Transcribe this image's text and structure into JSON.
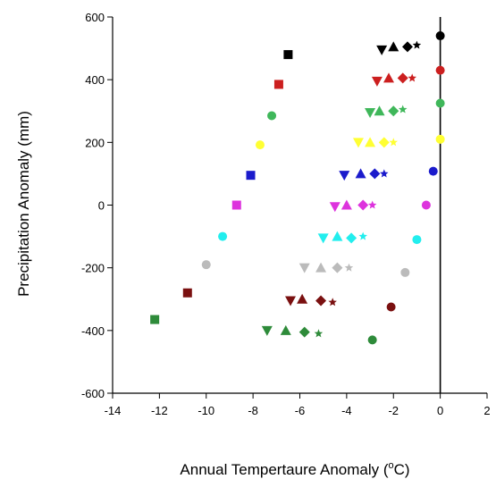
{
  "chart_data": {
    "type": "scatter",
    "xlabel": "Annual Tempertaure Anomaly (",
    "xlabel_unit": "oC)",
    "xlabel_sup": "o",
    "xlabel_end": "C)",
    "ylabel": "Precipitation Anomaly (mm)",
    "xlim": [
      -14,
      2
    ],
    "ylim": [
      -600,
      600
    ],
    "x_ticks": [
      "-14",
      "-12",
      "-10",
      "-8",
      "-6",
      "-4",
      "-2",
      "0",
      "2"
    ],
    "y_ticks": [
      "-600",
      "-400",
      "-200",
      "0",
      "200",
      "400",
      "600"
    ],
    "vertical_reference_line_x": 0,
    "grid": false,
    "points": [
      {
        "x": -6.5,
        "y": 480,
        "color": "#000000",
        "marker": "square"
      },
      {
        "x": -6.9,
        "y": 385,
        "color": "#cc1f1f",
        "marker": "square"
      },
      {
        "x": -7.2,
        "y": 285,
        "color": "#3fb75a",
        "marker": "circle"
      },
      {
        "x": -7.7,
        "y": 192,
        "color": "#ffff33",
        "marker": "circle"
      },
      {
        "x": -8.1,
        "y": 95,
        "color": "#1b1bcc",
        "marker": "square"
      },
      {
        "x": -8.7,
        "y": 0,
        "color": "#dd33dd",
        "marker": "square"
      },
      {
        "x": -9.3,
        "y": -100,
        "color": "#22eeee",
        "marker": "circle"
      },
      {
        "x": -10,
        "y": -190,
        "color": "#bbbbbb",
        "marker": "circle"
      },
      {
        "x": -10.8,
        "y": -280,
        "color": "#7a1010",
        "marker": "square"
      },
      {
        "x": -12.2,
        "y": -365,
        "color": "#2e8b3a",
        "marker": "square"
      },
      {
        "x": -2.5,
        "y": 495,
        "color": "#000000",
        "marker": "tri-down"
      },
      {
        "x": -2.0,
        "y": 505,
        "color": "#000000",
        "marker": "tri-up"
      },
      {
        "x": -1.4,
        "y": 505,
        "color": "#000000",
        "marker": "diamond"
      },
      {
        "x": -1.0,
        "y": 510,
        "color": "#000000",
        "marker": "star"
      },
      {
        "x": 0,
        "y": 540,
        "color": "#000000",
        "marker": "circle"
      },
      {
        "x": -2.7,
        "y": 395,
        "color": "#cc1f1f",
        "marker": "tri-down"
      },
      {
        "x": -2.2,
        "y": 405,
        "color": "#cc1f1f",
        "marker": "tri-up"
      },
      {
        "x": -1.6,
        "y": 405,
        "color": "#cc1f1f",
        "marker": "diamond"
      },
      {
        "x": -1.2,
        "y": 405,
        "color": "#cc1f1f",
        "marker": "star"
      },
      {
        "x": 0,
        "y": 430,
        "color": "#cc1f1f",
        "marker": "circle"
      },
      {
        "x": -3.0,
        "y": 295,
        "color": "#3fb75a",
        "marker": "tri-down"
      },
      {
        "x": -2.6,
        "y": 300,
        "color": "#3fb75a",
        "marker": "tri-up"
      },
      {
        "x": -2.0,
        "y": 300,
        "color": "#3fb75a",
        "marker": "diamond"
      },
      {
        "x": -1.6,
        "y": 305,
        "color": "#3fb75a",
        "marker": "star"
      },
      {
        "x": 0,
        "y": 325,
        "color": "#3fb75a",
        "marker": "circle"
      },
      {
        "x": -3.5,
        "y": 200,
        "color": "#ffff33",
        "marker": "tri-down"
      },
      {
        "x": -3.0,
        "y": 200,
        "color": "#ffff33",
        "marker": "tri-up"
      },
      {
        "x": -2.4,
        "y": 200,
        "color": "#ffff33",
        "marker": "diamond"
      },
      {
        "x": -2.0,
        "y": 200,
        "color": "#ffff33",
        "marker": "star"
      },
      {
        "x": 0,
        "y": 210,
        "color": "#ffff33",
        "marker": "circle"
      },
      {
        "x": -4.1,
        "y": 95,
        "color": "#1b1bcc",
        "marker": "tri-down"
      },
      {
        "x": -3.4,
        "y": 100,
        "color": "#1b1bcc",
        "marker": "tri-up"
      },
      {
        "x": -2.8,
        "y": 100,
        "color": "#1b1bcc",
        "marker": "diamond"
      },
      {
        "x": -2.4,
        "y": 100,
        "color": "#1b1bcc",
        "marker": "star"
      },
      {
        "x": -0.3,
        "y": 108,
        "color": "#1b1bcc",
        "marker": "circle"
      },
      {
        "x": -4.5,
        "y": -5,
        "color": "#dd33dd",
        "marker": "tri-down"
      },
      {
        "x": -4.0,
        "y": 0,
        "color": "#dd33dd",
        "marker": "tri-up"
      },
      {
        "x": -3.3,
        "y": 0,
        "color": "#dd33dd",
        "marker": "diamond"
      },
      {
        "x": -2.9,
        "y": 0,
        "color": "#dd33dd",
        "marker": "star"
      },
      {
        "x": -0.6,
        "y": 0,
        "color": "#dd33dd",
        "marker": "circle"
      },
      {
        "x": -5.0,
        "y": -105,
        "color": "#22eeee",
        "marker": "tri-down"
      },
      {
        "x": -4.4,
        "y": -100,
        "color": "#22eeee",
        "marker": "tri-up"
      },
      {
        "x": -3.8,
        "y": -105,
        "color": "#22eeee",
        "marker": "diamond"
      },
      {
        "x": -3.3,
        "y": -100,
        "color": "#22eeee",
        "marker": "star"
      },
      {
        "x": -1.0,
        "y": -110,
        "color": "#22eeee",
        "marker": "circle"
      },
      {
        "x": -5.8,
        "y": -200,
        "color": "#bbbbbb",
        "marker": "tri-down"
      },
      {
        "x": -5.1,
        "y": -200,
        "color": "#bbbbbb",
        "marker": "tri-up"
      },
      {
        "x": -4.4,
        "y": -200,
        "color": "#bbbbbb",
        "marker": "diamond"
      },
      {
        "x": -3.9,
        "y": -200,
        "color": "#bbbbbb",
        "marker": "star"
      },
      {
        "x": -1.5,
        "y": -215,
        "color": "#bbbbbb",
        "marker": "circle"
      },
      {
        "x": -6.4,
        "y": -305,
        "color": "#7a1010",
        "marker": "tri-down"
      },
      {
        "x": -5.9,
        "y": -300,
        "color": "#7a1010",
        "marker": "tri-up"
      },
      {
        "x": -5.1,
        "y": -305,
        "color": "#7a1010",
        "marker": "diamond"
      },
      {
        "x": -4.6,
        "y": -310,
        "color": "#7a1010",
        "marker": "star"
      },
      {
        "x": -2.1,
        "y": -325,
        "color": "#7a1010",
        "marker": "circle"
      },
      {
        "x": -7.4,
        "y": -400,
        "color": "#2e8b3a",
        "marker": "tri-down"
      },
      {
        "x": -6.6,
        "y": -400,
        "color": "#2e8b3a",
        "marker": "tri-up"
      },
      {
        "x": -5.8,
        "y": -405,
        "color": "#2e8b3a",
        "marker": "diamond"
      },
      {
        "x": -5.2,
        "y": -410,
        "color": "#2e8b3a",
        "marker": "star"
      },
      {
        "x": -2.9,
        "y": -430,
        "color": "#2e8b3a",
        "marker": "circle"
      }
    ]
  }
}
